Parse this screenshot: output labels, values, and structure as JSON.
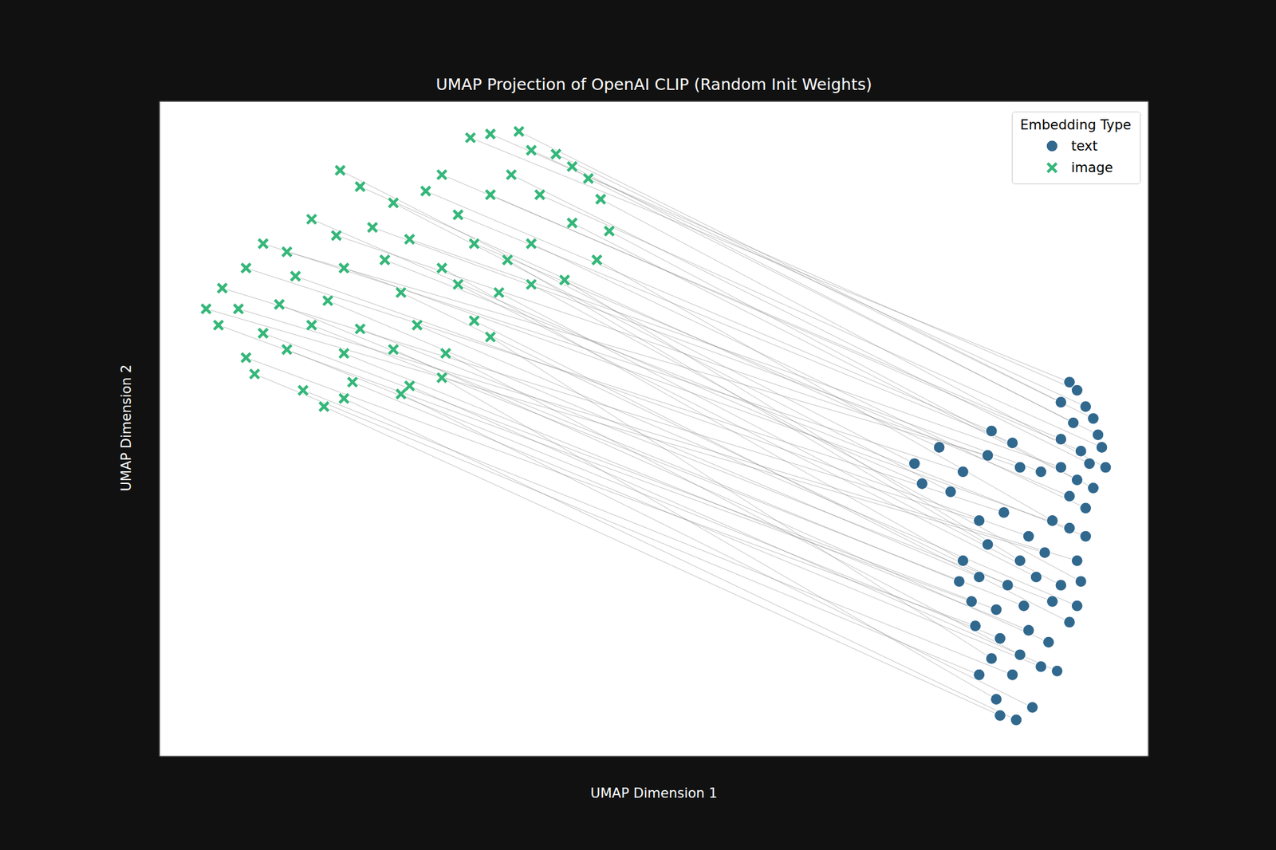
{
  "chart_data": {
    "type": "scatter",
    "title": "UMAP Projection of OpenAI CLIP (Random Init Weights)",
    "x_label": "UMAP Dimension 1",
    "y_label": "UMAP Dimension 2",
    "legend_title": "Embedding Type",
    "legend": "upper right",
    "grid": true,
    "tick_labels": false,
    "xlim": [
      0.1,
      10.5
    ],
    "xticks": [
      2,
      4,
      6,
      8,
      10
    ],
    "ylim": [
      0.3,
      10.75
    ],
    "yticks": [
      2,
      4,
      6,
      8,
      10
    ],
    "series": [
      {
        "name": "text",
        "color": "#31688e",
        "marker": "circle",
        "x": [
          9.67,
          9.75,
          9.58,
          9.84,
          9.92,
          9.71,
          9.97,
          8.04,
          8.3,
          9.58,
          9.79,
          9.88,
          10.01,
          10.05,
          8.12,
          8.42,
          8.85,
          9.07,
          9.75,
          9.92,
          8.55,
          8.81,
          9.15,
          9.37,
          9.58,
          9.67,
          9.84,
          9.49,
          8.72,
          8.98,
          9.24,
          9.67,
          9.84,
          8.55,
          8.81,
          9.15,
          9.41,
          9.75,
          8.51,
          8.72,
          9.02,
          9.32,
          9.58,
          9.79,
          8.64,
          8.9,
          9.19,
          9.49,
          9.75,
          9.67,
          8.68,
          8.94,
          9.24,
          9.45,
          9.15,
          8.85,
          8.72,
          9.07,
          9.37,
          9.54,
          8.9,
          8.94,
          9.11,
          9.28
        ],
        "y": [
          6.27,
          6.14,
          5.95,
          5.88,
          5.69,
          5.62,
          5.43,
          4.97,
          5.23,
          5.36,
          5.17,
          4.97,
          5.23,
          4.91,
          4.65,
          4.52,
          5.49,
          5.3,
          4.71,
          4.58,
          4.84,
          5.1,
          4.91,
          4.84,
          4.91,
          4.45,
          4.26,
          4.06,
          4.06,
          4.19,
          3.81,
          3.94,
          3.81,
          3.42,
          3.68,
          3.42,
          3.55,
          3.42,
          3.09,
          3.16,
          3.03,
          3.16,
          3.03,
          3.09,
          2.77,
          2.64,
          2.7,
          2.77,
          2.7,
          2.44,
          2.38,
          2.18,
          2.31,
          2.12,
          1.92,
          1.86,
          1.6,
          1.6,
          1.73,
          1.66,
          1.21,
          0.95,
          0.88,
          1.08
        ]
      },
      {
        "name": "image",
        "color": "#35b779",
        "marker": "x",
        "x": [
          3.37,
          3.58,
          3.88,
          4.01,
          4.27,
          4.44,
          4.61,
          2.0,
          2.21,
          3.07,
          3.58,
          3.8,
          4.1,
          4.74,
          1.7,
          2.56,
          2.9,
          3.24,
          4.44,
          4.83,
          1.19,
          1.44,
          1.96,
          2.34,
          2.73,
          3.41,
          4.01,
          4.7,
          0.76,
          1.01,
          1.53,
          2.04,
          2.47,
          3.07,
          3.76,
          4.36,
          0.59,
          0.93,
          1.36,
          1.87,
          2.64,
          3.24,
          3.67,
          4.01,
          0.72,
          1.19,
          1.7,
          2.21,
          2.81,
          3.41,
          1.01,
          1.44,
          2.04,
          2.56,
          3.11,
          3.58,
          1.1,
          1.61,
          2.13,
          2.73,
          3.07,
          1.83,
          2.04,
          2.64
        ],
        "y": [
          10.17,
          10.23,
          10.27,
          9.97,
          9.91,
          9.71,
          9.52,
          9.65,
          9.39,
          9.58,
          9.26,
          9.58,
          9.26,
          9.19,
          8.87,
          9.13,
          9.32,
          8.94,
          8.81,
          8.68,
          8.48,
          8.35,
          8.61,
          8.74,
          8.55,
          8.48,
          8.48,
          8.22,
          7.77,
          8.09,
          7.96,
          8.09,
          8.22,
          8.09,
          8.22,
          7.9,
          7.44,
          7.44,
          7.51,
          7.57,
          7.7,
          7.83,
          7.7,
          7.83,
          7.18,
          7.05,
          7.18,
          7.12,
          7.18,
          7.25,
          6.66,
          6.79,
          6.73,
          6.79,
          6.73,
          6.99,
          6.4,
          6.14,
          6.27,
          6.21,
          6.34,
          5.88,
          6.01,
          6.08
        ]
      }
    ]
  }
}
